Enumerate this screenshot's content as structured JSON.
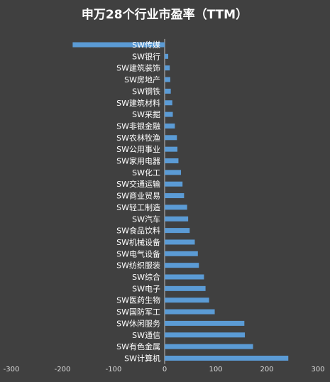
{
  "chart_data": {
    "type": "bar",
    "orientation": "horizontal",
    "title": "申万28个行业市盈率（TTM）",
    "xlabel": "",
    "ylabel": "",
    "xlim": [
      -300,
      300
    ],
    "xticks": [
      -300,
      -200,
      -100,
      0,
      100,
      200,
      300
    ],
    "grid": false,
    "legend": "none",
    "colors": {
      "background": "#404040",
      "bar": "#5b9bd5",
      "text": "#ffffff",
      "tick_text": "#d9d9d9"
    },
    "categories": [
      "SW传媒",
      "SW银行",
      "SW建筑装饰",
      "SW房地产",
      "SW钢铁",
      "SW建筑材料",
      "SW采掘",
      "SW非银金融",
      "SW农林牧渔",
      "SW公用事业",
      "SW家用电器",
      "SW化工",
      "SW交通运输",
      "SW商业贸易",
      "SW轻工制造",
      "SW汽车",
      "SW食品饮料",
      "SW机械设备",
      "SW电气设备",
      "SW纺织服装",
      "SW综合",
      "SW电子",
      "SW医药生物",
      "SW国防军工",
      "SW休闲服务",
      "SW通信",
      "SW有色金属",
      "SW计算机"
    ],
    "values": [
      -180,
      7,
      10,
      11,
      12,
      15,
      16,
      20,
      24,
      25,
      27,
      32,
      35,
      38,
      44,
      46,
      49,
      59,
      65,
      67,
      77,
      80,
      87,
      98,
      156,
      157,
      173,
      242
    ]
  }
}
